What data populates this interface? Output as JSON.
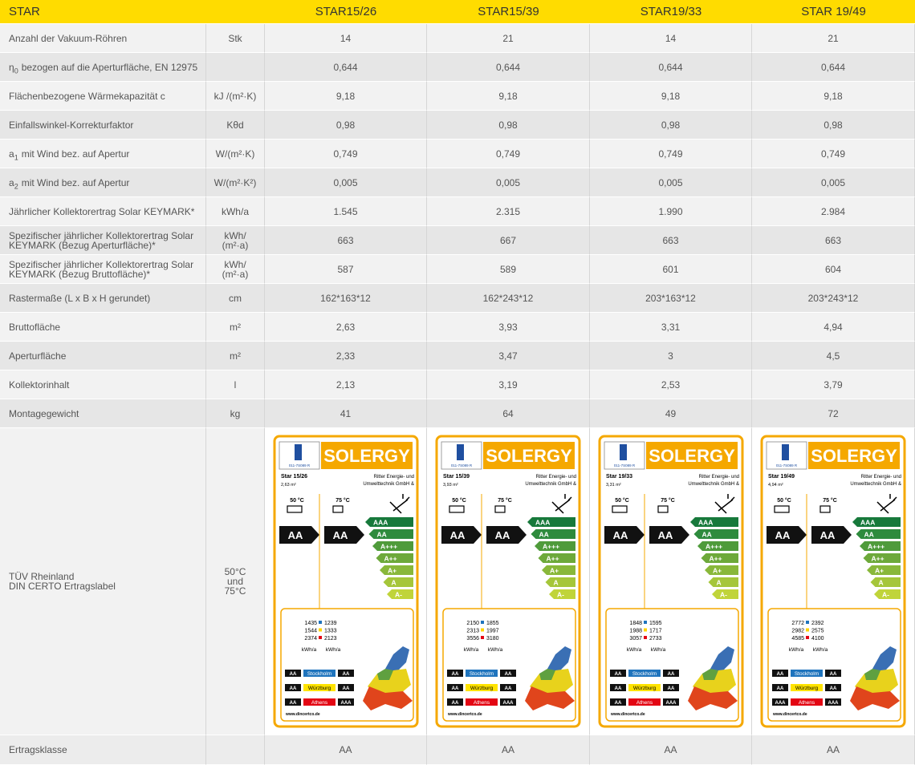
{
  "table": {
    "header": [
      "STAR",
      "STAR15/26",
      "STAR15/39",
      "STAR19/33",
      "STAR 19/49"
    ],
    "rows": [
      {
        "label": "Anzahl der Vakuum-Röhren",
        "unit": "Stk",
        "values": [
          "14",
          "21",
          "14",
          "21"
        ]
      },
      {
        "label": {
          "symbol": "η",
          "subscript": "0",
          "text": "bezogen auf die Aperturfläche, EN 12975"
        },
        "unit": "",
        "values": [
          "0,644",
          "0,644",
          "0,644",
          "0,644"
        ]
      },
      {
        "label": "Flächenbezogene Wärmekapazität c",
        "unit": "kJ /(m²·K)",
        "values": [
          "9,18",
          "9,18",
          "9,18",
          "9,18"
        ]
      },
      {
        "label": "Einfallswinkel-Korrekturfaktor",
        "unit": "Kθd",
        "values": [
          "0,98",
          "0,98",
          "0,98",
          "0,98"
        ]
      },
      {
        "label": {
          "symbol": "a",
          "subscript": "1",
          "text": "mit Wind bez. auf Apertur"
        },
        "unit": "W/(m²·K)",
        "values": [
          "0,749",
          "0,749",
          "0,749",
          "0,749"
        ]
      },
      {
        "label": {
          "symbol": "a",
          "subscript": "2",
          "text": "mit Wind bez. auf Apertur"
        },
        "unit": "W/(m²·K²)",
        "values": [
          "0,005",
          "0,005",
          "0,005",
          "0,005"
        ]
      },
      {
        "label": "Jährlicher Kollektorertrag Solar KEYMARK*",
        "unit": "kWh/a",
        "values": [
          "1.545",
          "2.315",
          "1.990",
          "2.984"
        ]
      },
      {
        "label": "Spezifischer jährlicher Kollektorertrag Solar KEYMARK (Bezug Aperturfläche)*",
        "unit": [
          "kWh/",
          "(m²·a)"
        ],
        "values": [
          "663",
          "667",
          "663",
          "663"
        ]
      },
      {
        "label": "Spezifischer jährlicher Kollektorertrag Solar KEYMARK (Bezug Bruttofläche)*",
        "unit": [
          "kWh/",
          "(m²·a)"
        ],
        "values": [
          "587",
          "589",
          "601",
          "604"
        ]
      },
      {
        "label": "Rastermaße (L x B x H gerundet)",
        "unit": "cm",
        "values": [
          "162*163*12",
          "162*243*12",
          "203*163*12",
          "203*243*12"
        ]
      },
      {
        "label": "Bruttofläche",
        "unit": "m²",
        "values": [
          "2,63",
          "3,93",
          "3,31",
          "4,94"
        ]
      },
      {
        "label": "Aperturfläche",
        "unit": "m²",
        "values": [
          "2,33",
          "3,47",
          "3",
          "4,5"
        ]
      },
      {
        "label": "Kollektorinhalt",
        "unit": "l",
        "values": [
          "2,13",
          "3,19",
          "2,53",
          "3,79"
        ]
      },
      {
        "label": "Montagegewicht",
        "unit": "kg",
        "values": [
          "41",
          "64",
          "49",
          "72"
        ]
      }
    ],
    "label_row": {
      "label": [
        "TÜV Rheinland",
        "DIN CERTO Ertragslabel"
      ],
      "unit": [
        "50°C",
        "und",
        "75°C"
      ]
    },
    "last_row": {
      "label": "Ertragsklasse",
      "unit": "",
      "values": [
        "AA",
        "AA",
        "AA",
        "AA"
      ]
    }
  },
  "energy_label": {
    "brand": "SOLERGY",
    "code": "011-7S089 R",
    "manufacturer": [
      "Ritter Energie- und",
      "Umwelttechnik GmbH &"
    ],
    "temps": [
      "50 °C",
      "75 °C"
    ],
    "classes": [
      "AAA",
      "AA",
      "A+++",
      "A++",
      "A+",
      "A",
      "A-"
    ],
    "unit_labels": [
      "kWh/a",
      "kWh/a"
    ],
    "cities": [
      "Stockholm",
      "Würzburg",
      "Athens"
    ],
    "website": "www.dincertco.de",
    "labels": [
      {
        "name": "Star 15/26",
        "area": "2,63 m²",
        "grades": [
          "AA",
          "AA"
        ],
        "yields": [
          [
            1435,
            1239
          ],
          [
            1544,
            1333
          ],
          [
            2374,
            2123
          ]
        ],
        "city_grades": [
          [
            "AA",
            "AA"
          ],
          [
            "AA",
            "AA"
          ],
          [
            "AA",
            "AAA"
          ]
        ]
      },
      {
        "name": "Star 15/39",
        "area": "3,93 m²",
        "grades": [
          "AA",
          "AA"
        ],
        "yields": [
          [
            2150,
            1855
          ],
          [
            2313,
            1997
          ],
          [
            3556,
            3180
          ]
        ],
        "city_grades": [
          [
            "AA",
            "AA"
          ],
          [
            "AA",
            "AA"
          ],
          [
            "AA",
            "AAA"
          ]
        ]
      },
      {
        "name": "Star 19/33",
        "area": "3,31 m²",
        "grades": [
          "AA",
          "AA"
        ],
        "yields": [
          [
            1848,
            1595
          ],
          [
            1988,
            1717
          ],
          [
            3057,
            2733
          ]
        ],
        "city_grades": [
          [
            "AA",
            "AA"
          ],
          [
            "AA",
            "AA"
          ],
          [
            "AA",
            "AAA"
          ]
        ]
      },
      {
        "name": "Star 19/49",
        "area": "4,94 m²",
        "grades": [
          "AA",
          "AA"
        ],
        "yields": [
          [
            2772,
            2392
          ],
          [
            2982,
            2575
          ],
          [
            4585,
            4100
          ]
        ],
        "city_grades": [
          [
            "AA",
            "AA"
          ],
          [
            "AA",
            "AA"
          ],
          [
            "AAA",
            "AAA"
          ]
        ]
      }
    ]
  }
}
